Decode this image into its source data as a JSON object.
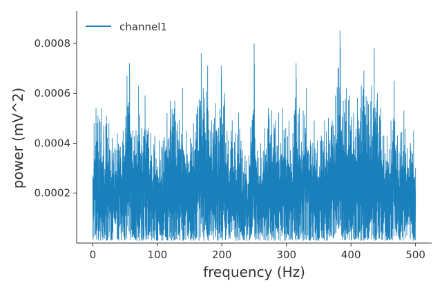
{
  "chart_data": {
    "type": "line",
    "title": "",
    "xlabel": "frequency (Hz)",
    "ylabel": "power (mV^2)",
    "xlim": [
      -25,
      525
    ],
    "ylim": [
      0,
      0.00093
    ],
    "x_ticks": [
      0,
      100,
      200,
      300,
      400,
      500
    ],
    "x_tick_labels": [
      "0",
      "100",
      "200",
      "300",
      "400",
      "500"
    ],
    "y_ticks": [
      0.0002,
      0.0004,
      0.0006,
      0.0008
    ],
    "y_tick_labels": [
      "0.0002",
      "0.0004",
      "0.0006",
      "0.0008"
    ],
    "grid": false,
    "legend_position": "top-left",
    "colors": {
      "series": "#1a80bb",
      "axis": "#333333"
    },
    "series": [
      {
        "name": "channel1",
        "x_start": 0,
        "x_end": 500,
        "peaks": [
          [
            0,
            0.00027
          ],
          [
            2,
            0.00048
          ],
          [
            5,
            0.00054
          ],
          [
            8,
            0.00051
          ],
          [
            13,
            0.00054
          ],
          [
            17,
            0.00047
          ],
          [
            21,
            0.00051
          ],
          [
            25,
            0.00048
          ],
          [
            30,
            0.00042
          ],
          [
            38,
            0.00044
          ],
          [
            47,
            0.00045
          ],
          [
            53,
            0.00067
          ],
          [
            57,
            0.00072
          ],
          [
            62,
            0.00045
          ],
          [
            67,
            0.00045
          ],
          [
            71,
            0.00063
          ],
          [
            76,
            0.00046
          ],
          [
            81,
            0.00059
          ],
          [
            86,
            0.00046
          ],
          [
            90,
            0.00044
          ],
          [
            96,
            0.00043
          ],
          [
            103,
            0.00041
          ],
          [
            109,
            0.00041
          ],
          [
            115,
            0.00052
          ],
          [
            120,
            0.00057
          ],
          [
            127,
            0.00057
          ],
          [
            131,
            0.00048
          ],
          [
            139,
            0.00062
          ],
          [
            145,
            0.00045
          ],
          [
            151,
            0.00042
          ],
          [
            156,
            0.00048
          ],
          [
            162,
            0.00055
          ],
          [
            168,
            0.00076
          ],
          [
            173,
            0.00058
          ],
          [
            178,
            0.00071
          ],
          [
            184,
            0.00049
          ],
          [
            190,
            0.00056
          ],
          [
            195,
            0.00046
          ],
          [
            199,
            0.00071
          ],
          [
            204,
            0.0006
          ],
          [
            210,
            0.00041
          ],
          [
            216,
            0.00049
          ],
          [
            221,
            0.00044
          ],
          [
            226,
            0.00052
          ],
          [
            232,
            0.00037
          ],
          [
            236,
            0.00035
          ],
          [
            242,
            0.00035
          ],
          [
            250,
            0.0008
          ],
          [
            255,
            0.00037
          ],
          [
            260,
            0.0004
          ],
          [
            266,
            0.00046
          ],
          [
            272,
            0.00054
          ],
          [
            277,
            0.00053
          ],
          [
            283,
            0.00049
          ],
          [
            288,
            0.00052
          ],
          [
            294,
            0.00054
          ],
          [
            299,
            0.00046
          ],
          [
            304,
            0.00049
          ],
          [
            310,
            0.00044
          ],
          [
            315,
            0.00072
          ],
          [
            320,
            0.00054
          ],
          [
            326,
            0.00053
          ],
          [
            331,
            0.00062
          ],
          [
            337,
            0.00041
          ],
          [
            343,
            0.00049
          ],
          [
            348,
            0.00041
          ],
          [
            354,
            0.00043
          ],
          [
            359,
            0.00049
          ],
          [
            365,
            0.0005
          ],
          [
            371,
            0.00049
          ],
          [
            376,
            0.00059
          ],
          [
            380,
            0.0007
          ],
          [
            383,
            0.00085
          ],
          [
            388,
            0.00057
          ],
          [
            393,
            0.00062
          ],
          [
            398,
            0.00059
          ],
          [
            404,
            0.00052
          ],
          [
            410,
            0.00058
          ],
          [
            416,
            0.00063
          ],
          [
            420,
            0.00069
          ],
          [
            426,
            0.00057
          ],
          [
            432,
            0.00063
          ],
          [
            436,
            0.00078
          ],
          [
            441,
            0.0006
          ],
          [
            446,
            0.00054
          ],
          [
            451,
            0.00043
          ],
          [
            456,
            0.00043
          ],
          [
            462,
            0.00049
          ],
          [
            467,
            0.00065
          ],
          [
            472,
            0.00043
          ],
          [
            477,
            0.00044
          ],
          [
            482,
            0.00053
          ],
          [
            487,
            0.00038
          ],
          [
            492,
            0.0004
          ],
          [
            497,
            0.00045
          ],
          [
            500,
            0.0003
          ]
        ]
      }
    ]
  }
}
